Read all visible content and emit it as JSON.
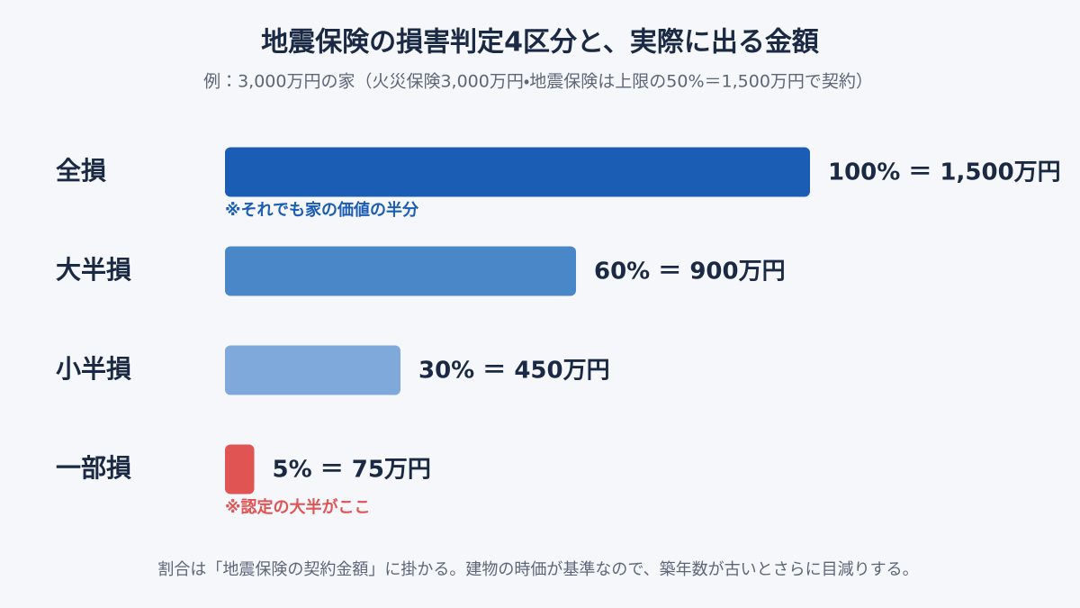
{
  "chart_data": {
    "type": "hbar",
    "title": "地震保険の損害判定4区分と、実際に出る金額",
    "subtitle": "例：3,000万円の家（火災保険3,000万円・地震保険は上限の50%＝1,500万円で契約）",
    "categories": [
      "全損",
      "大半損",
      "小半損",
      "一部損"
    ],
    "values": [
      100,
      60,
      30,
      5
    ],
    "value_labels": [
      "100% ＝ 1,500万円",
      "60% ＝ 900万円",
      "30% ＝ 450万円",
      "5% ＝ 75万円"
    ],
    "colors": [
      "#1b5cb4",
      "#4a87c9",
      "#7fa8db",
      "#e05454"
    ],
    "notes": [
      "※それでも家の価値の半分",
      null,
      null,
      "※認定の大半がここ"
    ],
    "footnote": "割合は「地震保険の契約金額」に掛かる。建物の時価が基準なので、築年数が古いとさらに目減りする。"
  }
}
